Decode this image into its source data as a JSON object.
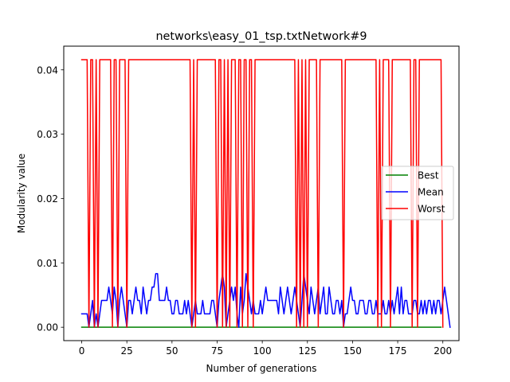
{
  "chart_data": {
    "type": "line",
    "title": "networks\\easy_01_tsp.txtNetwork#9",
    "xlabel": "Number of generations",
    "ylabel": "Modularity value",
    "xlim": [
      -9.95,
      208.95
    ],
    "ylim": [
      -0.00208,
      0.04368
    ],
    "xticks": [
      0,
      25,
      50,
      75,
      100,
      125,
      150,
      175,
      200
    ],
    "xtick_labels": [
      "0",
      "25",
      "50",
      "75",
      "100",
      "125",
      "150",
      "175",
      "200"
    ],
    "yticks": [
      0.0,
      0.01,
      0.02,
      0.03,
      0.04
    ],
    "ytick_labels": [
      "0.00",
      "0.01",
      "0.02",
      "0.03",
      "0.04"
    ],
    "grid": false,
    "legend_position": "center right",
    "x_range": [
      0,
      199
    ],
    "series": [
      {
        "name": "Best",
        "color": "#008000",
        "values": [
          0,
          0,
          0,
          0,
          0,
          0,
          0,
          0,
          0,
          0,
          0,
          0,
          0,
          0,
          0,
          0,
          0,
          0,
          0,
          0,
          0,
          0,
          0,
          0,
          0,
          0,
          0,
          0,
          0,
          0,
          0,
          0,
          0,
          0,
          0,
          0,
          0,
          0,
          0,
          0,
          0,
          0,
          0,
          0,
          0,
          0,
          0,
          0,
          0,
          0,
          0,
          0,
          0,
          0,
          0,
          0,
          0,
          0,
          0,
          0,
          0,
          0,
          0,
          0,
          0,
          0,
          0,
          0,
          0,
          0,
          0,
          0,
          0,
          0,
          0,
          0,
          0,
          0,
          0,
          0,
          0,
          0,
          0,
          0,
          0,
          0,
          0,
          0,
          0,
          0,
          0,
          0,
          0,
          0,
          0,
          0,
          0,
          0,
          0,
          0,
          0,
          0,
          0,
          0,
          0,
          0,
          0,
          0,
          0,
          0,
          0,
          0,
          0,
          0,
          0,
          0,
          0,
          0,
          0,
          0,
          0,
          0,
          0,
          0,
          0,
          0,
          0,
          0,
          0,
          0,
          0,
          0,
          0,
          0,
          0,
          0,
          0,
          0,
          0,
          0,
          0,
          0,
          0,
          0,
          0,
          0,
          0,
          0,
          0,
          0,
          0,
          0,
          0,
          0,
          0,
          0,
          0,
          0,
          0,
          0,
          0,
          0,
          0,
          0,
          0,
          0,
          0,
          0,
          0,
          0,
          0,
          0,
          0,
          0,
          0,
          0,
          0,
          0,
          0,
          0,
          0,
          0,
          0,
          0,
          0,
          0,
          0,
          0,
          0,
          0,
          0,
          0,
          0,
          0,
          0,
          0,
          0,
          0,
          0,
          0
        ]
      },
      {
        "name": "Mean",
        "color": "#0000ff",
        "values": [
          0.00208,
          0.00208,
          0.00208,
          0.00208,
          0,
          0.00208,
          0.00416,
          0,
          0.00208,
          0,
          0.00208,
          0.00416,
          0.00416,
          0.00416,
          0.00416,
          0.00624,
          0.00416,
          0.00208,
          0.00624,
          0.00416,
          0,
          0.00416,
          0.00624,
          0.00416,
          0.00208,
          0,
          0.00416,
          0.00416,
          0.00208,
          0.00416,
          0.00624,
          0.00416,
          0.00416,
          0.00208,
          0.00624,
          0.00416,
          0.00208,
          0.00416,
          0.00416,
          0.00624,
          0.00624,
          0.00832,
          0.00832,
          0.00416,
          0.00416,
          0.00416,
          0.00416,
          0.00624,
          0.00416,
          0.00416,
          0.00208,
          0.00208,
          0.00416,
          0.00416,
          0.00208,
          0.00208,
          0.00208,
          0.00416,
          0.00208,
          0.00416,
          0.00208,
          0,
          0.00208,
          0.00416,
          0.00208,
          0.00208,
          0.00208,
          0.00416,
          0.00208,
          0.00208,
          0.00208,
          0.00208,
          0.00416,
          0.00416,
          0.00208,
          0,
          0.00416,
          0.00624,
          0.00832,
          0.00624,
          0,
          0.00208,
          0.00416,
          0.00624,
          0.00416,
          0.00624,
          0.00208,
          0,
          0.00624,
          0.00208,
          0.00416,
          0.00832,
          0.00624,
          0.00416,
          0.00208,
          0.00416,
          0.00208,
          0.00208,
          0.00208,
          0.00416,
          0.00208,
          0.00416,
          0.00624,
          0.00416,
          0.00416,
          0.00416,
          0.00416,
          0.00416,
          0.00416,
          0.00208,
          0.00624,
          0.00416,
          0.00208,
          0.00416,
          0.00624,
          0.00416,
          0.00208,
          0.00416,
          0.00624,
          0.00416,
          0.00208,
          0,
          0.00416,
          0.00832,
          0.00624,
          0.00416,
          0.00208,
          0.00624,
          0.00416,
          0.00208,
          0.00416,
          0.00624,
          0.00208,
          0.00416,
          0.00624,
          0.00208,
          0.00208,
          0.00624,
          0.00416,
          0.00208,
          0.00208,
          0.00416,
          0.00416,
          0.00208,
          0.00416,
          0,
          0.00208,
          0.00208,
          0.00416,
          0.00624,
          0.00416,
          0.00416,
          0.00208,
          0.00208,
          0.00416,
          0.00416,
          0.00416,
          0.00208,
          0.00208,
          0.00416,
          0.00416,
          0.00208,
          0.00208,
          0.00416,
          0.00208,
          0.00208,
          0.00208,
          0.00416,
          0.00208,
          0.00208,
          0.00416,
          0.00208,
          0.00416,
          0.00208,
          0.00416,
          0.00624,
          0.00208,
          0.00624,
          0.00208,
          0.00416,
          0.00416,
          0.00208,
          0.00208,
          0.00208,
          0.00416,
          0.00416,
          0.00208,
          0.00208,
          0.00416,
          0.00208,
          0.00416,
          0.00208,
          0.00416,
          0.00416,
          0.00208,
          0.00416,
          0.00208,
          0.00416,
          0.00416,
          0.00208,
          0.00416,
          0.00624,
          0.00416,
          0.00208,
          0
        ]
      },
      {
        "name": "Worst",
        "color": "#ff0000",
        "values": [
          0.04158,
          0.04158,
          0.04158,
          0.04158,
          0,
          0.04158,
          0.04158,
          0,
          0.04158,
          0,
          0.04158,
          0.04158,
          0.04158,
          0.04158,
          0.04158,
          0.04158,
          0.04158,
          0,
          0.04158,
          0.04158,
          0,
          0.04158,
          0.04158,
          0.04158,
          0.04158,
          0,
          0.04158,
          0.04158,
          0.04158,
          0.04158,
          0.04158,
          0.04158,
          0.04158,
          0.04158,
          0.04158,
          0.04158,
          0.04158,
          0.04158,
          0.04158,
          0.04158,
          0.04158,
          0.04158,
          0.04158,
          0.04158,
          0.04158,
          0.04158,
          0.04158,
          0.04158,
          0.04158,
          0.04158,
          0.04158,
          0.04158,
          0.04158,
          0.04158,
          0.04158,
          0.04158,
          0.04158,
          0.04158,
          0.04158,
          0.04158,
          0.04158,
          0,
          0.04158,
          0,
          0.04158,
          0.04158,
          0.04158,
          0.04158,
          0.04158,
          0.04158,
          0.04158,
          0.04158,
          0.04158,
          0.04158,
          0.04158,
          0,
          0.04158,
          0.04158,
          0,
          0.04158,
          0,
          0.04158,
          0,
          0.04158,
          0.04158,
          0.04158,
          0,
          0.04158,
          0.04158,
          0,
          0.04158,
          0.04158,
          0,
          0.04158,
          0.04158,
          0,
          0.04158,
          0.04158,
          0.04158,
          0.04158,
          0.04158,
          0.04158,
          0.04158,
          0.04158,
          0.04158,
          0.04158,
          0.04158,
          0.04158,
          0.04158,
          0.04158,
          0.04158,
          0.04158,
          0.04158,
          0.04158,
          0.04158,
          0.04158,
          0.04158,
          0.04158,
          0.04158,
          0,
          0.04158,
          0,
          0.04158,
          0,
          0.04158,
          0,
          0.04158,
          0.04158,
          0.04158,
          0.04158,
          0.04158,
          0,
          0.04158,
          0.04158,
          0.04158,
          0.04158,
          0.04158,
          0.04158,
          0.04158,
          0.04158,
          0.04158,
          0.04158,
          0.04158,
          0.04158,
          0.04158,
          0,
          0.04158,
          0.04158,
          0.04158,
          0.04158,
          0.04158,
          0.04158,
          0.04158,
          0.04158,
          0.04158,
          0.04158,
          0.04158,
          0.04158,
          0.04158,
          0.04158,
          0.04158,
          0.04158,
          0.04158,
          0.04158,
          0,
          0.04158,
          0,
          0.04158,
          0.04158,
          0.04158,
          0.04158,
          0,
          0.04158,
          0.04158,
          0.04158,
          0.04158,
          0.04158,
          0.04158,
          0.04158,
          0.04158,
          0.04158,
          0.04158,
          0.04158,
          0,
          0.04158,
          0.04158,
          0,
          0.04158,
          0.04158,
          0.04158,
          0.04158,
          0.04158,
          0.04158,
          0.04158,
          0.04158,
          0.04158,
          0.04158,
          0.04158,
          0.04158,
          0.04158,
          0
        ]
      }
    ]
  }
}
